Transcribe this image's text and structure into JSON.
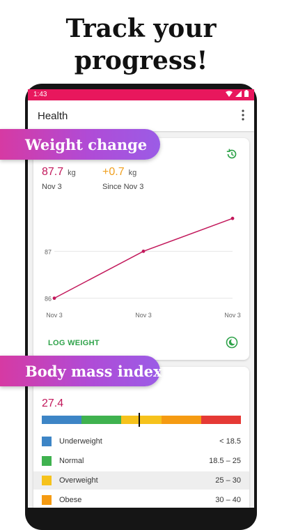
{
  "headline": {
    "line1": "Track your",
    "line2": "progress!"
  },
  "status_bar": {
    "time": "1:43"
  },
  "app_bar": {
    "title": "Health"
  },
  "weight_card": {
    "current": {
      "value": "87.7",
      "unit": "kg",
      "date": "Nov 3"
    },
    "change": {
      "value": "+0.7",
      "unit": "kg",
      "since": "Since Nov 3"
    },
    "log_button": "LOG WEIGHT"
  },
  "chart_data": {
    "type": "line",
    "x_ticks": [
      "Nov 3",
      "Nov 3",
      "Nov 3"
    ],
    "y_ticks": [
      86,
      87
    ],
    "ylim": [
      85.95,
      88.0
    ],
    "points": [
      {
        "x": "Nov 3",
        "y": 86.0
      },
      {
        "x": "Nov 3",
        "y": 87.0
      },
      {
        "x": "Nov 3",
        "y": 87.7
      }
    ],
    "colors": {
      "line": "#c2185b",
      "grid": "#e6e6e6"
    }
  },
  "bmi_card": {
    "value": "27.4",
    "bar_colors": [
      "#3d85c6",
      "#3fb24f",
      "#f6c21c",
      "#f59b12",
      "#e53935"
    ],
    "marker_fraction": 0.49,
    "legend": [
      {
        "label": "Underweight",
        "range": "< 18.5",
        "color": "#3d85c6"
      },
      {
        "label": "Normal",
        "range": "18.5 – 25",
        "color": "#3fb24f"
      },
      {
        "label": "Overweight",
        "range": "25 – 30",
        "color": "#f6c21c"
      },
      {
        "label": "Obese",
        "range": "30 – 40",
        "color": "#f59b12"
      }
    ]
  },
  "callouts": {
    "weight": "Weight change",
    "bmi": "Body mass index"
  },
  "colors": {
    "accent": "#e8175d",
    "positive": "#2fa34a",
    "change": "#f0a020"
  }
}
